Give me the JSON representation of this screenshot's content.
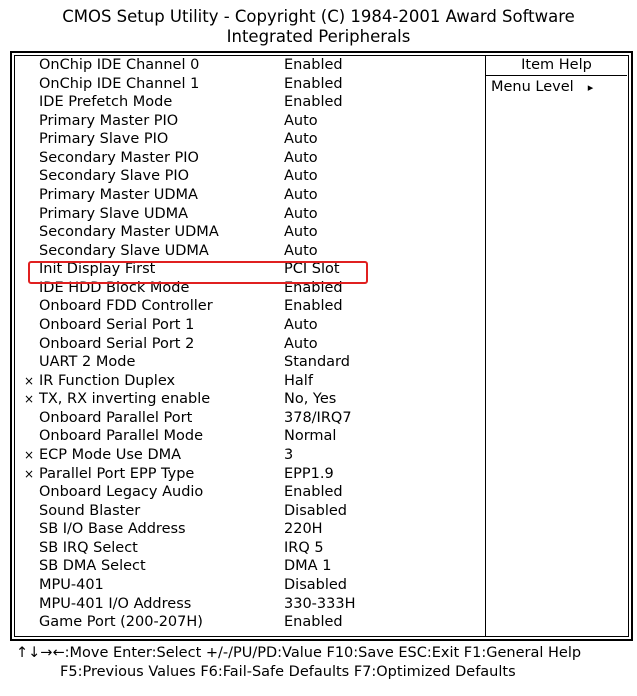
{
  "header": {
    "line1": "CMOS Setup Utility - Copyright (C) 1984-2001 Award Software",
    "line2": "Integrated Peripherals"
  },
  "help": {
    "title": "Item Help",
    "menu_level": "Menu Level",
    "arrow": "▸"
  },
  "highlight_color": "#e02020",
  "items": [
    {
      "label": "OnChip IDE Channel 0",
      "value": "Enabled",
      "mark": ""
    },
    {
      "label": "OnChip IDE Channel 1",
      "value": "Enabled",
      "mark": ""
    },
    {
      "label": "IDE Prefetch Mode",
      "value": "Enabled",
      "mark": ""
    },
    {
      "label": "Primary Master PIO",
      "value": "Auto",
      "mark": ""
    },
    {
      "label": "Primary Slave PIO",
      "value": "Auto",
      "mark": ""
    },
    {
      "label": "Secondary Master PIO",
      "value": "Auto",
      "mark": ""
    },
    {
      "label": "Secondary Slave PIO",
      "value": "Auto",
      "mark": ""
    },
    {
      "label": "Primary Master UDMA",
      "value": "Auto",
      "mark": ""
    },
    {
      "label": "Primary Slave UDMA",
      "value": "Auto",
      "mark": ""
    },
    {
      "label": "Secondary Master UDMA",
      "value": "Auto",
      "mark": ""
    },
    {
      "label": "Secondary Slave UDMA",
      "value": "Auto",
      "mark": ""
    },
    {
      "label": "Init Display First",
      "value": "PCI Slot",
      "mark": ""
    },
    {
      "label": "IDE HDD Block Mode",
      "value": "Enabled",
      "mark": ""
    },
    {
      "label": "Onboard FDD Controller",
      "value": "Enabled",
      "mark": ""
    },
    {
      "label": "Onboard Serial Port 1",
      "value": "Auto",
      "mark": ""
    },
    {
      "label": "Onboard Serial Port 2",
      "value": "Auto",
      "mark": ""
    },
    {
      "label": "UART 2 Mode",
      "value": "Standard",
      "mark": ""
    },
    {
      "label": "IR Function Duplex",
      "value": "Half",
      "mark": "×"
    },
    {
      "label": "TX, RX inverting enable",
      "value": "No, Yes",
      "mark": "×"
    },
    {
      "label": "Onboard Parallel Port",
      "value": "378/IRQ7",
      "mark": ""
    },
    {
      "label": "Onboard Parallel Mode",
      "value": "Normal",
      "mark": ""
    },
    {
      "label": "ECP Mode Use DMA",
      "value": "3",
      "mark": "×"
    },
    {
      "label": "Parallel Port EPP Type",
      "value": "EPP1.9",
      "mark": "×"
    },
    {
      "label": "Onboard Legacy Audio",
      "value": "Enabled",
      "mark": ""
    },
    {
      "label": "Sound Blaster",
      "value": "Disabled",
      "mark": ""
    },
    {
      "label": "SB I/O Base Address",
      "value": "220H",
      "mark": ""
    },
    {
      "label": "SB IRQ Select",
      "value": "IRQ 5",
      "mark": ""
    },
    {
      "label": "SB DMA Select",
      "value": "DMA 1",
      "mark": ""
    },
    {
      "label": "MPU-401",
      "value": "Disabled",
      "mark": ""
    },
    {
      "label": "MPU-401 I/O Address",
      "value": "330-333H",
      "mark": ""
    },
    {
      "label": "Game Port (200-207H)",
      "value": "Enabled",
      "mark": ""
    }
  ],
  "footer": {
    "line1": "↑↓→←:Move   Enter:Select   +/-/PU/PD:Value   F10:Save   ESC:Exit   F1:General Help",
    "line2": "F5:Previous Values   F6:Fail-Safe Defaults   F7:Optimized Defaults"
  }
}
